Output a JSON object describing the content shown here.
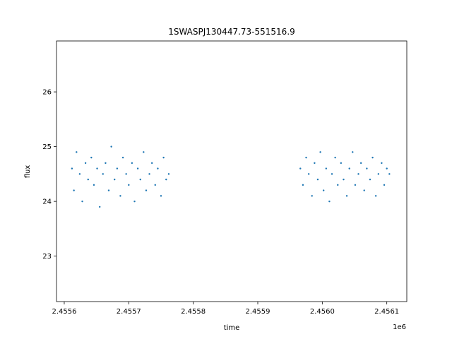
{
  "chart_data": {
    "type": "scatter",
    "title": "1SWASPJ130447.73-551516.9",
    "xlabel": "time",
    "ylabel": "flux",
    "x_offset_label": "1e6",
    "xlim": [
      2455588,
      2456131
    ],
    "ylim": [
      22.17,
      26.93
    ],
    "x_ticks": [
      2455600,
      2455700,
      2455800,
      2455900,
      2456000,
      2456100
    ],
    "x_tick_labels": [
      "2.4556",
      "2.4557",
      "2.4558",
      "2.4559",
      "2.4560",
      "2.4561"
    ],
    "y_ticks": [
      23,
      24,
      25,
      26
    ],
    "y_tick_labels": [
      "23",
      "24",
      "25",
      "26"
    ],
    "marker_color": "#1f77b4",
    "grid": false,
    "series": [
      {
        "x": [
          2455612,
          2455615,
          2455619,
          2455624,
          2455628,
          2455633,
          2455637,
          2455642,
          2455646,
          2455651,
          2455655,
          2455660,
          2455664,
          2455669,
          2455673,
          2455678,
          2455682,
          2455687,
          2455691,
          2455696,
          2455700,
          2455705,
          2455709,
          2455714,
          2455718,
          2455723,
          2455727,
          2455732,
          2455736,
          2455741,
          2455745,
          2455750,
          2455754,
          2455758,
          2455762,
          2455966,
          2455970,
          2455975,
          2455979,
          2455984,
          2455988,
          2455993,
          2455997,
          2456002,
          2456006,
          2456011,
          2456015,
          2456020,
          2456024,
          2456029,
          2456033,
          2456038,
          2456042,
          2456047,
          2456051,
          2456056,
          2456060,
          2456065,
          2456069,
          2456074,
          2456078,
          2456083,
          2456087,
          2456092,
          2456096,
          2456100,
          2456104
        ],
        "y": [
          24.6,
          24.2,
          24.9,
          24.5,
          24.0,
          24.7,
          24.4,
          24.8,
          24.3,
          24.6,
          23.9,
          24.5,
          24.7,
          24.2,
          25.0,
          24.4,
          24.6,
          24.1,
          24.8,
          24.5,
          24.3,
          24.7,
          24.0,
          24.6,
          24.4,
          24.9,
          24.2,
          24.5,
          24.7,
          24.3,
          24.6,
          24.1,
          24.8,
          24.4,
          24.5,
          24.6,
          24.3,
          24.8,
          24.5,
          24.1,
          24.7,
          24.4,
          24.9,
          24.2,
          24.6,
          24.0,
          24.5,
          24.8,
          24.3,
          24.7,
          24.4,
          24.1,
          24.6,
          24.9,
          24.3,
          24.5,
          24.7,
          24.2,
          24.6,
          24.4,
          24.8,
          24.1,
          24.5,
          24.7,
          24.3,
          24.6,
          24.5
        ]
      }
    ]
  }
}
